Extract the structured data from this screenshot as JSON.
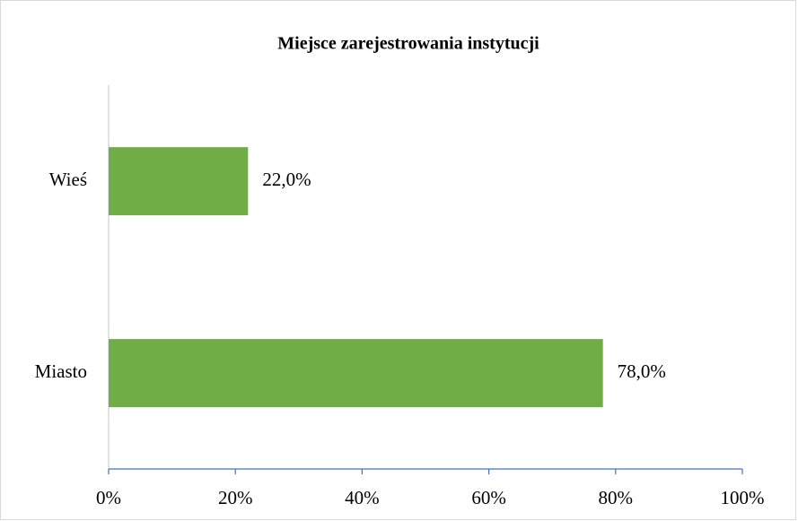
{
  "chart_data": {
    "type": "barh",
    "title": "Miejsce zarejestrowania instytucji",
    "categories": [
      "Wieś",
      "Miasto"
    ],
    "values": [
      22,
      78
    ],
    "value_labels": [
      "22,0%",
      "78,0%"
    ],
    "color": "#70ad47",
    "xlim": [
      0,
      100
    ],
    "xticks": [
      {
        "value": 0,
        "label": "0%"
      },
      {
        "value": 20,
        "label": "20%"
      },
      {
        "value": 40,
        "label": "40%"
      },
      {
        "value": 60,
        "label": "60%"
      },
      {
        "value": 80,
        "label": "80%"
      },
      {
        "value": 100,
        "label": "100%"
      }
    ],
    "grid": false
  }
}
